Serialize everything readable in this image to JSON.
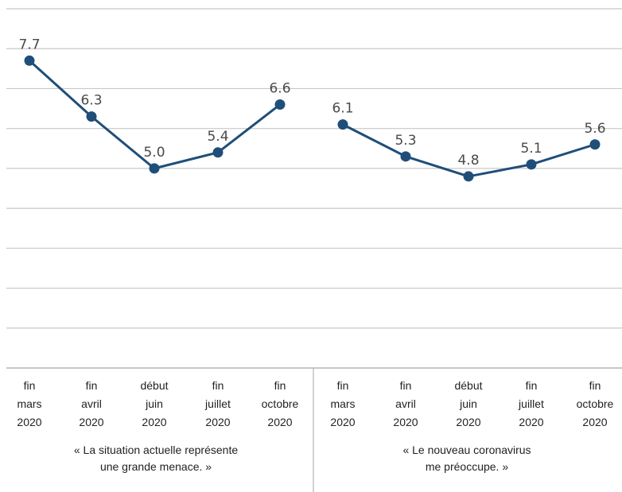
{
  "chart_data": {
    "type": "line",
    "ylim": [
      0,
      9
    ],
    "grid": true,
    "colors": {
      "line": "#1f4e79",
      "marker": "#1f4e79",
      "grid": "#c8c8c8",
      "axis": "#a6a6a6"
    },
    "groups": [
      {
        "title_lines": [
          "« La situation actuelle représente",
          "une grande menace. »"
        ],
        "categories": [
          [
            "fin",
            "mars",
            "2020"
          ],
          [
            "fin",
            "avril",
            "2020"
          ],
          [
            "début",
            "juin",
            "2020"
          ],
          [
            "fin",
            "juillet",
            "2020"
          ],
          [
            "fin",
            "octobre",
            "2020"
          ]
        ],
        "values": [
          7.7,
          6.3,
          5.0,
          5.4,
          6.6
        ],
        "value_labels": [
          "7.7",
          "6.3",
          "5.0",
          "5.4",
          "6.6"
        ]
      },
      {
        "title_lines": [
          "« Le nouveau coronavirus",
          "me préoccupe. »"
        ],
        "categories": [
          [
            "fin",
            "mars",
            "2020"
          ],
          [
            "fin",
            "avril",
            "2020"
          ],
          [
            "début",
            "juin",
            "2020"
          ],
          [
            "fin",
            "juillet",
            "2020"
          ],
          [
            "fin",
            "octobre",
            "2020"
          ]
        ],
        "values": [
          6.1,
          5.3,
          4.8,
          5.1,
          5.6
        ],
        "value_labels": [
          "6.1",
          "5.3",
          "4.8",
          "5.1",
          "5.6"
        ]
      }
    ]
  }
}
